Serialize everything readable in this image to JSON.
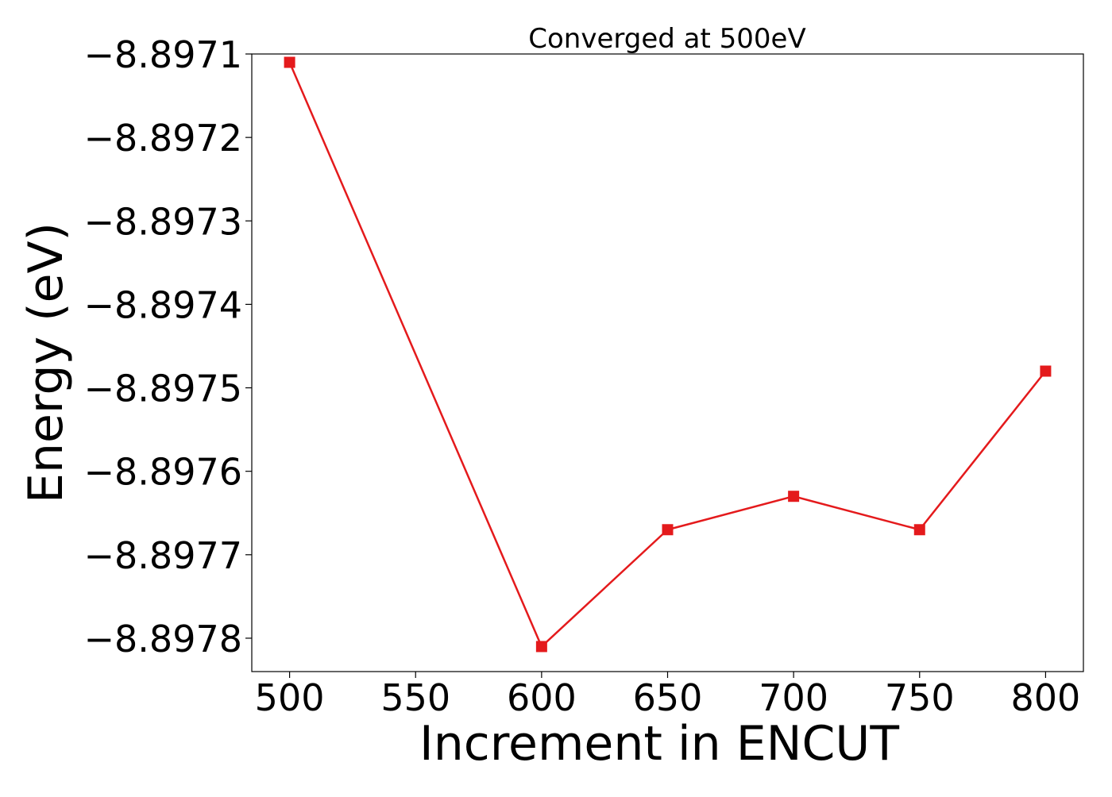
{
  "chart_data": {
    "type": "line",
    "title": "Converged at 500eV",
    "xlabel": "Increment in ENCUT",
    "ylabel": "Energy (eV)",
    "x": [
      500,
      600,
      650,
      700,
      750,
      800
    ],
    "series": [
      {
        "values": [
          -8.89711,
          -8.89781,
          -8.89767,
          -8.89763,
          -8.89767,
          -8.89748
        ],
        "color": "#e41a1c",
        "marker": "square"
      }
    ],
    "xticks": [
      500,
      550,
      600,
      650,
      700,
      750,
      800
    ],
    "xtick_labels": [
      "500",
      "550",
      "600",
      "650",
      "700",
      "750",
      "800"
    ],
    "yticks": [
      -8.8971,
      -8.8972,
      -8.8973,
      -8.8974,
      -8.8975,
      -8.8976,
      -8.8977,
      -8.8978
    ],
    "ytick_labels": [
      "−8.8971",
      "−8.8972",
      "−8.8973",
      "−8.8974",
      "−8.8975",
      "−8.8976",
      "−8.8977",
      "−8.8978"
    ],
    "xlim": [
      485,
      815
    ],
    "ylim": [
      -8.89784,
      -8.8971
    ],
    "grid": false,
    "legend": false
  }
}
